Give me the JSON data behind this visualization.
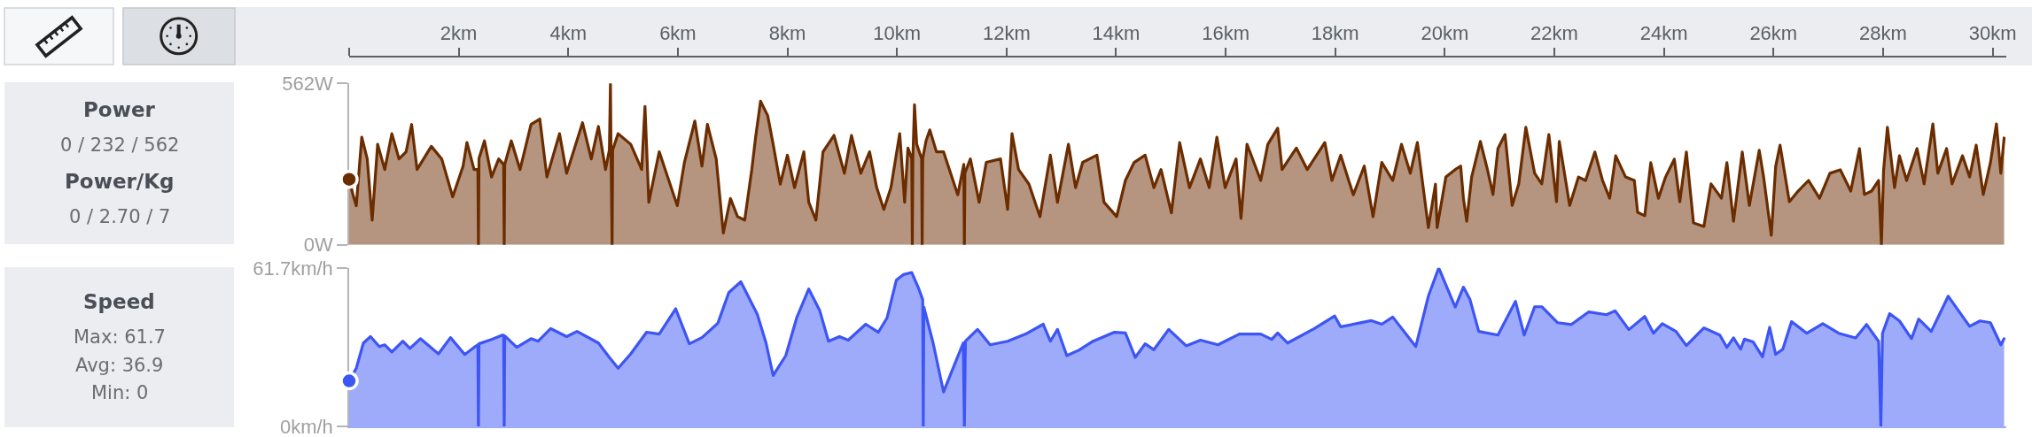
{
  "chart_data": [
    {
      "type": "other",
      "title": "Power",
      "annotations": [
        "0 / 232 / 562"
      ]
    },
    {
      "type": "other",
      "title": "Power/Kg",
      "annotations": [
        "0 / 2.70 / 7"
      ]
    },
    {
      "type": "area",
      "xlim": [
        0,
        30.25
      ],
      "xticks": [
        {
          "value": 0,
          "label": null
        },
        {
          "value": 2,
          "label": "2km"
        },
        {
          "value": 4,
          "label": "4km"
        },
        {
          "value": 6,
          "label": "6km"
        },
        {
          "value": 8,
          "label": "8km"
        },
        {
          "value": 10,
          "label": "10km"
        },
        {
          "value": 12,
          "label": "12km"
        },
        {
          "value": 14,
          "label": "14km"
        },
        {
          "value": 16,
          "label": "16km"
        },
        {
          "value": 18,
          "label": "18km"
        },
        {
          "value": 20,
          "label": "20km"
        },
        {
          "value": 22,
          "label": "22km"
        },
        {
          "value": 24,
          "label": "24km"
        },
        {
          "value": 26,
          "label": "26km"
        },
        {
          "value": 28,
          "label": "28km"
        },
        {
          "value": 30,
          "label": "30km"
        }
      ],
      "ylim": [
        0,
        562
      ],
      "yticks": [
        {
          "value": 0,
          "label": "0W"
        },
        {
          "value": 562,
          "label": "562W"
        }
      ],
      "x": [
        0,
        0.07,
        0.13,
        0.23,
        0.33,
        0.42,
        0.52,
        0.65,
        0.78,
        0.91,
        1.04,
        1.14,
        1.24,
        1.5,
        1.69,
        1.89,
        2.08,
        2.15,
        2.28,
        2.35,
        2.36,
        2.37,
        2.47,
        2.6,
        2.73,
        2.82,
        2.83,
        2.84,
        2.96,
        3.12,
        3.32,
        3.48,
        3.61,
        3.84,
        3.97,
        4.26,
        4.42,
        4.55,
        4.68,
        4.75,
        4.77,
        4.78,
        4.8,
        4.81,
        4.91,
        5.14,
        5.34,
        5.4,
        5.47,
        5.66,
        5.99,
        6.12,
        6.31,
        6.44,
        6.54,
        6.7,
        6.83,
        6.96,
        7.09,
        7.22,
        7.35,
        7.42,
        7.51,
        7.64,
        7.74,
        7.87,
        8.0,
        8.13,
        8.3,
        8.39,
        8.52,
        8.65,
        8.85,
        9.04,
        9.17,
        9.34,
        9.5,
        9.63,
        9.76,
        9.89,
        10.05,
        10.14,
        10.2,
        10.27,
        10.28,
        10.29,
        10.32,
        10.36,
        10.45,
        10.46,
        10.47,
        10.53,
        10.6,
        10.72,
        10.85,
        10.98,
        11.11,
        11.22,
        11.23,
        11.24,
        11.34,
        11.5,
        11.63,
        11.89,
        12.02,
        12.1,
        12.22,
        12.41,
        12.61,
        12.8,
        12.93,
        13.13,
        13.26,
        13.39,
        13.65,
        13.78,
        14.01,
        14.17,
        14.33,
        14.53,
        14.69,
        14.82,
        15.01,
        15.16,
        15.34,
        15.54,
        15.7,
        15.84,
        15.99,
        16.19,
        16.28,
        16.39,
        16.64,
        16.77,
        16.95,
        17.03,
        17.29,
        17.49,
        17.81,
        17.94,
        18.1,
        18.33,
        18.53,
        18.69,
        18.85,
        19.05,
        19.21,
        19.37,
        19.5,
        19.7,
        19.83,
        19.86,
        20.02,
        20.19,
        20.29,
        20.34,
        20.4,
        20.49,
        20.65,
        20.78,
        20.88,
        20.97,
        21.1,
        21.23,
        21.35,
        21.48,
        21.64,
        21.77,
        21.9,
        22.04,
        22.09,
        22.28,
        22.44,
        22.57,
        22.74,
        22.88,
        23.01,
        23.12,
        23.3,
        23.46,
        23.52,
        23.65,
        23.76,
        23.9,
        24.03,
        24.19,
        24.29,
        24.41,
        24.54,
        24.73,
        24.86,
        25.05,
        25.15,
        25.27,
        25.43,
        25.56,
        25.74,
        25.82,
        25.96,
        26.04,
        26.12,
        26.29,
        26.45,
        26.64,
        26.84,
        27.03,
        27.22,
        27.41,
        27.57,
        27.66,
        27.79,
        27.92,
        27.97,
        28.01,
        28.08,
        28.21,
        28.3,
        28.43,
        28.62,
        28.75,
        28.91,
        29.0,
        29.16,
        29.26,
        29.45,
        29.58,
        29.7,
        29.83,
        29.96,
        30.07,
        30.15,
        30.21
      ],
      "series": [
        {
          "color": "#6b2c00",
          "values": [
            228,
            174,
            136,
            375,
            299,
            86,
            350,
            262,
            387,
            299,
            324,
            419,
            262,
            343,
            299,
            167,
            274,
            356,
            262,
            262,
            0,
            300,
            362,
            236,
            299,
            280,
            0,
            280,
            362,
            262,
            419,
            438,
            236,
            387,
            249,
            425,
            299,
            412,
            262,
            330,
            562,
            330,
            0,
            330,
            387,
            350,
            262,
            482,
            148,
            324,
            136,
            287,
            431,
            274,
            419,
            299,
            41,
            161,
            98,
            86,
            262,
            375,
            500,
            450,
            350,
            211,
            312,
            199,
            324,
            148,
            86,
            324,
            381,
            249,
            381,
            249,
            324,
            199,
            123,
            199,
            387,
            148,
            337,
            300,
            0,
            300,
            488,
            350,
            300,
            0,
            300,
            362,
            400,
            324,
            324,
            249,
            174,
            280,
            0,
            250,
            299,
            148,
            287,
            299,
            123,
            387,
            262,
            211,
            98,
            312,
            148,
            350,
            199,
            287,
            312,
            148,
            98,
            224,
            287,
            312,
            199,
            262,
            111,
            356,
            199,
            299,
            199,
            375,
            199,
            299,
            92,
            350,
            224,
            350,
            406,
            262,
            337,
            262,
            356,
            224,
            312,
            174,
            274,
            98,
            287,
            224,
            350,
            249,
            356,
            60,
            211,
            60,
            236,
            262,
            274,
            162,
            82,
            236,
            360,
            261,
            175,
            335,
            384,
            137,
            212,
            409,
            249,
            212,
            384,
            150,
            360,
            137,
            236,
            224,
            323,
            224,
            162,
            310,
            236,
            224,
            113,
            101,
            286,
            162,
            236,
            298,
            150,
            323,
            76,
            64,
            212,
            162,
            286,
            82,
            323,
            137,
            329,
            236,
            33,
            273,
            347,
            150,
            187,
            224,
            162,
            249,
            261,
            187,
            335,
            175,
            187,
            224,
            0,
            260,
            409,
            199,
            310,
            224,
            335,
            212,
            421,
            249,
            335,
            212,
            310,
            236,
            347,
            175,
            286,
            421,
            249,
            372
          ]
        }
      ]
    },
    {
      "type": "other",
      "title": "Speed",
      "annotations": [
        "Max: 61.7",
        "Avg: 36.9",
        "Min: 0"
      ]
    },
    {
      "type": "area",
      "xlim": [
        0,
        30.25
      ],
      "tick_labels": "y",
      "ylim": [
        0,
        61.7
      ],
      "yticks": [
        {
          "value": 0,
          "label": "0km/h"
        },
        {
          "value": 61.7,
          "label": "61.7km/h"
        }
      ],
      "x": [
        0,
        0.13,
        0.26,
        0.39,
        0.55,
        0.65,
        0.78,
        0.98,
        1.11,
        1.3,
        1.63,
        1.85,
        2.11,
        2.28,
        2.35,
        2.36,
        2.37,
        2.6,
        2.8,
        2.82,
        2.83,
        2.84,
        3.06,
        3.32,
        3.45,
        3.68,
        3.97,
        4.16,
        4.55,
        4.75,
        4.91,
        5.14,
        5.43,
        5.66,
        5.96,
        6.21,
        6.44,
        6.73,
        6.93,
        7.15,
        7.45,
        7.61,
        7.74,
        7.97,
        8.17,
        8.39,
        8.59,
        8.75,
        8.95,
        9.11,
        9.43,
        9.66,
        9.82,
        9.99,
        10.12,
        10.27,
        10.4,
        10.47,
        10.48,
        10.49,
        10.66,
        10.85,
        11.05,
        11.21,
        11.23,
        11.25,
        11.47,
        11.7,
        12.02,
        12.35,
        12.67,
        12.8,
        12.93,
        13.1,
        13.32,
        13.58,
        13.97,
        14.17,
        14.35,
        14.53,
        14.69,
        14.96,
        15.28,
        15.54,
        15.86,
        16.25,
        16.64,
        16.84,
        16.95,
        17.13,
        17.62,
        17.99,
        18.1,
        18.66,
        18.85,
        19.05,
        19.47,
        19.7,
        19.89,
        20.19,
        20.34,
        20.46,
        20.62,
        20.97,
        21.29,
        21.45,
        21.64,
        21.77,
        22.06,
        22.31,
        22.63,
        22.95,
        23.11,
        23.36,
        23.65,
        23.81,
        23.97,
        24.22,
        24.41,
        24.73,
        25.02,
        25.15,
        25.27,
        25.4,
        25.47,
        25.63,
        25.8,
        25.93,
        26.04,
        26.17,
        26.33,
        26.61,
        26.9,
        27.19,
        27.5,
        27.7,
        27.92,
        27.96,
        27.99,
        28.12,
        28.3,
        28.52,
        28.65,
        28.88,
        29.19,
        29.58,
        29.77,
        29.96,
        30.15,
        30.21
      ],
      "series": [
        {
          "color": "#3d55f5",
          "values": [
            17.8,
            22.7,
            32.5,
            35.0,
            31.1,
            31.8,
            29.0,
            33.2,
            30.4,
            34.2,
            28.3,
            34.6,
            28.0,
            30.8,
            31.8,
            0,
            32.2,
            33.9,
            35.6,
            35.4,
            0,
            35.3,
            30.8,
            34.2,
            33.2,
            38.1,
            35.0,
            37.0,
            32.5,
            26.9,
            22.7,
            28.3,
            36.7,
            36.0,
            45.8,
            32.2,
            34.6,
            40.2,
            52.1,
            56.3,
            43.7,
            32.5,
            19.9,
            27.6,
            42.3,
            53.5,
            45.1,
            33.2,
            35.0,
            33.6,
            39.8,
            36.7,
            42.3,
            57.0,
            59.1,
            59.9,
            53.5,
            49.3,
            0,
            46.5,
            32.5,
            13.5,
            24.1,
            32.5,
            0,
            33.2,
            37.8,
            31.8,
            33.2,
            36.0,
            39.8,
            33.2,
            37.8,
            27.6,
            29.7,
            33.2,
            36.7,
            36.4,
            26.9,
            32.2,
            29.9,
            37.8,
            31.4,
            33.6,
            31.8,
            36.0,
            36.0,
            33.9,
            36.4,
            32.5,
            38.1,
            43.0,
            38.8,
            41.2,
            39.8,
            42.6,
            31.1,
            50.7,
            61.7,
            46.5,
            54.2,
            49.4,
            37.0,
            35.6,
            48.7,
            35.6,
            46.6,
            46.6,
            40.4,
            39.7,
            44.6,
            43.5,
            45.0,
            37.7,
            42.8,
            36.3,
            40.0,
            37.0,
            31.5,
            38.4,
            35.6,
            30.8,
            34.5,
            30.1,
            34.0,
            32.9,
            27.1,
            38.6,
            28.1,
            30.1,
            40.8,
            36.3,
            40.0,
            36.3,
            34.5,
            39.7,
            33.1,
            0,
            36.3,
            43.9,
            41.1,
            34.2,
            41.8,
            37.0,
            50.7,
            39.0,
            41.1,
            40.4,
            31.8,
            34.2
          ]
        }
      ]
    }
  ]
}
